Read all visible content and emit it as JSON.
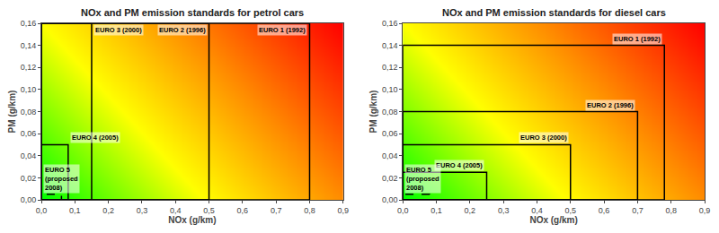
{
  "chart_data": [
    {
      "type": "rectangle",
      "title": "NOx and PM emission standards for petrol cars",
      "x_label": "NOx (g/km)",
      "y_label": "PM (g/km)",
      "xlim": [
        0.0,
        0.9
      ],
      "ylim": [
        0.0,
        0.16
      ],
      "xticks": [
        {
          "value": 0.0,
          "label": "0,0"
        },
        {
          "value": 0.1,
          "label": "0,1"
        },
        {
          "value": 0.2,
          "label": "0,2"
        },
        {
          "value": 0.3,
          "label": "0,3"
        },
        {
          "value": 0.4,
          "label": "0,4"
        },
        {
          "value": 0.5,
          "label": "0,5"
        },
        {
          "value": 0.6,
          "label": "0,6"
        },
        {
          "value": 0.7,
          "label": "0,7"
        },
        {
          "value": 0.8,
          "label": "0,8"
        },
        {
          "value": 0.9,
          "label": "0,9"
        }
      ],
      "yticks": [
        {
          "value": 0.0,
          "label": "0,00"
        },
        {
          "value": 0.02,
          "label": "0,02"
        },
        {
          "value": 0.04,
          "label": "0,04"
        },
        {
          "value": 0.06,
          "label": "0,06"
        },
        {
          "value": 0.08,
          "label": "0,08"
        },
        {
          "value": 0.1,
          "label": "0,10"
        },
        {
          "value": 0.12,
          "label": "0,12"
        },
        {
          "value": 0.14,
          "label": "0,14"
        },
        {
          "value": 0.16,
          "label": "0,16"
        }
      ],
      "grid": false,
      "color": "#000000",
      "series": [
        {
          "name": "EURO 1 (1992)",
          "x": [
            0.8
          ],
          "values": [
            0.16
          ],
          "line_style": "solid"
        },
        {
          "name": "EURO 2 (1996)",
          "x": [
            0.5
          ],
          "values": [
            0.16
          ],
          "line_style": "solid"
        },
        {
          "name": "EURO 3 (2000)",
          "x": [
            0.15
          ],
          "values": [
            0.16
          ],
          "line_style": "solid"
        },
        {
          "name": "EURO 4 (2005)",
          "x": [
            0.08
          ],
          "values": [
            0.05
          ],
          "line_style": "solid"
        },
        {
          "name": "EURO 5\n(proposed\n2008)",
          "x": [
            0.06
          ],
          "values": [
            0.005
          ],
          "line_style": "dashed"
        }
      ]
    },
    {
      "type": "rectangle",
      "title": "NOx and PM emission standards for diesel cars",
      "x_label": "NOx (g/km)",
      "y_label": "PM (g/km)",
      "xlim": [
        0.0,
        0.9
      ],
      "ylim": [
        0.0,
        0.16
      ],
      "xticks": [
        {
          "value": 0.0,
          "label": "0,0"
        },
        {
          "value": 0.1,
          "label": "0,1"
        },
        {
          "value": 0.2,
          "label": "0,2"
        },
        {
          "value": 0.3,
          "label": "0,3"
        },
        {
          "value": 0.4,
          "label": "0,4"
        },
        {
          "value": 0.5,
          "label": "0,5"
        },
        {
          "value": 0.6,
          "label": "0,6"
        },
        {
          "value": 0.7,
          "label": "0,7"
        },
        {
          "value": 0.8,
          "label": "0,8"
        },
        {
          "value": 0.9,
          "label": "0,9"
        }
      ],
      "yticks": [
        {
          "value": 0.0,
          "label": "0,00"
        },
        {
          "value": 0.02,
          "label": "0,02"
        },
        {
          "value": 0.04,
          "label": "0,04"
        },
        {
          "value": 0.06,
          "label": "0,06"
        },
        {
          "value": 0.08,
          "label": "0,08"
        },
        {
          "value": 0.1,
          "label": "0,10"
        },
        {
          "value": 0.12,
          "label": "0,12"
        },
        {
          "value": 0.14,
          "label": "0,14"
        },
        {
          "value": 0.16,
          "label": "0,16"
        }
      ],
      "grid": false,
      "color": "#000000",
      "series": [
        {
          "name": "EURO 1 (1992)",
          "x": [
            0.78
          ],
          "values": [
            0.14
          ],
          "line_style": "solid"
        },
        {
          "name": "EURO 2 (1996)",
          "x": [
            0.7
          ],
          "values": [
            0.08
          ],
          "line_style": "solid"
        },
        {
          "name": "EURO 3 (2000)",
          "x": [
            0.5
          ],
          "values": [
            0.05
          ],
          "line_style": "solid"
        },
        {
          "name": "EURO 4 (2005)",
          "x": [
            0.25
          ],
          "values": [
            0.025
          ],
          "line_style": "solid"
        },
        {
          "name": "EURO 5\n(proposed\n2008)",
          "x": [
            0.08
          ],
          "values": [
            0.005
          ],
          "line_style": "dashed"
        }
      ]
    }
  ]
}
